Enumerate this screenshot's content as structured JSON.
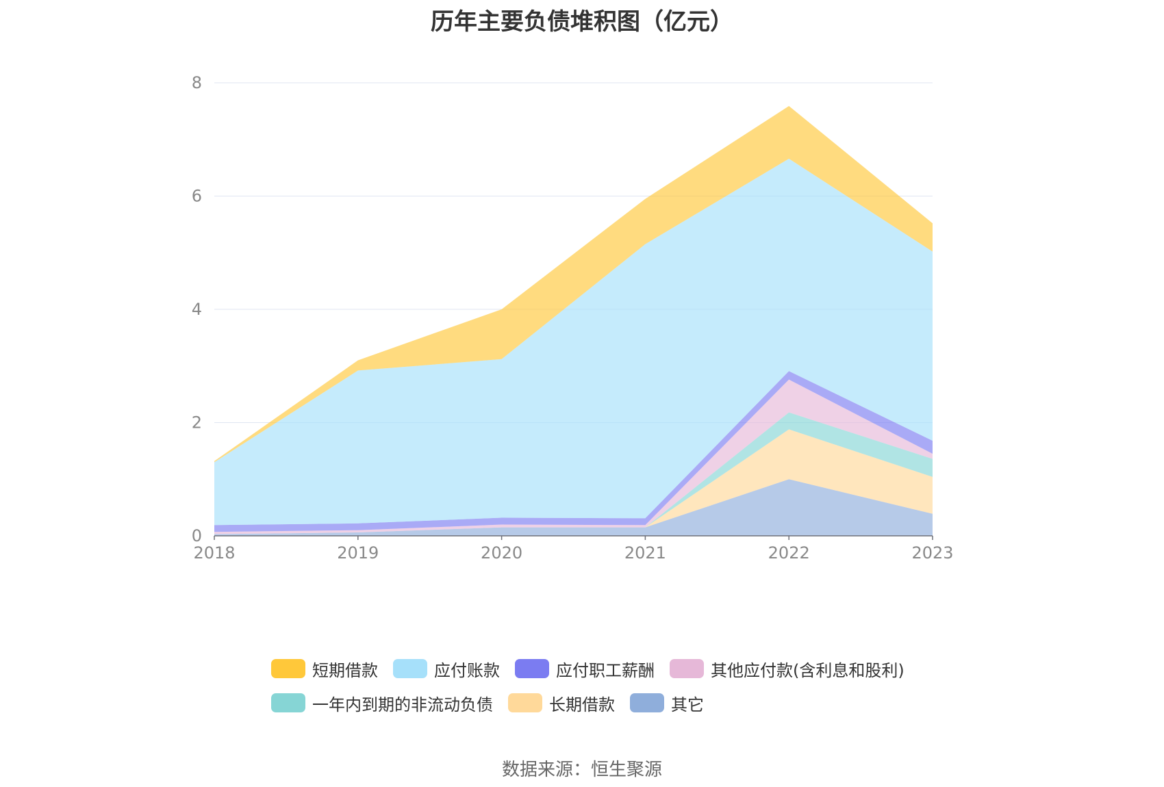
{
  "chart_data": {
    "type": "area",
    "stacked": true,
    "title": "历年主要负债堆积图（亿元）",
    "x": [
      "2018",
      "2019",
      "2020",
      "2021",
      "2022",
      "2023"
    ],
    "ylim": [
      0,
      8
    ],
    "yticks": [
      "0",
      "2",
      "4",
      "6",
      "8"
    ],
    "grid": true,
    "legend_position": "bottom",
    "series": [
      {
        "name": "其它",
        "color": "#8faedb",
        "values": [
          0.03,
          0.06,
          0.15,
          0.15,
          1.0,
          0.39
        ]
      },
      {
        "name": "长期借款",
        "color": "#ffd99a",
        "values": [
          0,
          0,
          0,
          0,
          0.88,
          0.65
        ]
      },
      {
        "name": "一年内到期的非流动负债",
        "color": "#86d5d5",
        "values": [
          0,
          0,
          0,
          0,
          0.3,
          0.32
        ]
      },
      {
        "name": "其他应付款(含利息和股利)",
        "color": "#e6b8d8",
        "values": [
          0.04,
          0.04,
          0.05,
          0.04,
          0.58,
          0.09
        ]
      },
      {
        "name": "应付职工薪酬",
        "color": "#7b7cf1",
        "values": [
          0.12,
          0.12,
          0.12,
          0.12,
          0.15,
          0.23
        ]
      },
      {
        "name": "应付账款",
        "color": "#a6e0fa",
        "values": [
          1.11,
          2.7,
          2.8,
          4.84,
          3.75,
          3.34
        ]
      },
      {
        "name": "短期借款",
        "color": "#ffc83a",
        "values": [
          0.02,
          0.18,
          0.88,
          0.8,
          0.93,
          0.5
        ]
      }
    ],
    "legend_order": [
      "短期借款",
      "应付账款",
      "应付职工薪酬",
      "其他应付款(含利息和股利)",
      "一年内到期的非流动负债",
      "长期借款",
      "其它"
    ]
  },
  "source_text": "数据来源：恒生聚源"
}
